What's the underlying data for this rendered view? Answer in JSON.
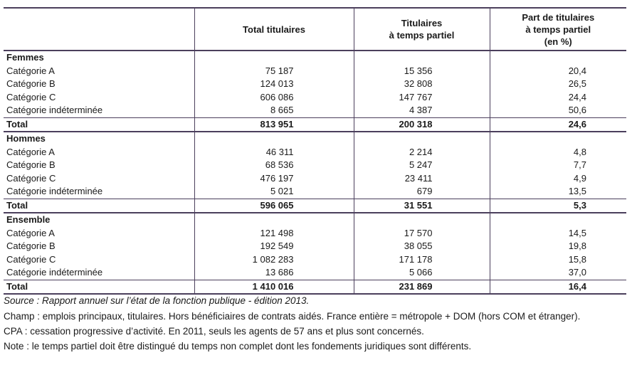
{
  "table": {
    "columns": [
      [
        "Total titulaires"
      ],
      [
        "Titulaires",
        "à temps partiel"
      ],
      [
        "Part de titulaires",
        "à temps partiel",
        "(en %)"
      ]
    ],
    "groups": [
      {
        "label": "Femmes",
        "rows": [
          [
            "Catégorie A",
            "75 187",
            "15 356",
            "20,4"
          ],
          [
            "Catégorie B",
            "124 013",
            "32 808",
            "26,5"
          ],
          [
            "Catégorie C",
            "606 086",
            "147 767",
            "24,4"
          ],
          [
            "Catégorie indéterminée",
            "8 665",
            "4 387",
            "50,6"
          ]
        ],
        "total": [
          "Total",
          "813 951",
          "200 318",
          "24,6"
        ]
      },
      {
        "label": "Hommes",
        "rows": [
          [
            "Catégorie A",
            "46 311",
            "2 214",
            "4,8"
          ],
          [
            "Catégorie B",
            "68 536",
            "5 247",
            "7,7"
          ],
          [
            "Catégorie C",
            "476 197",
            "23 411",
            "4,9"
          ],
          [
            "Catégorie indéterminée",
            "5 021",
            "679",
            "13,5"
          ]
        ],
        "total": [
          "Total",
          "596 065",
          "31 551",
          "5,3"
        ]
      },
      {
        "label": "Ensemble",
        "rows": [
          [
            "Catégorie A",
            "121 498",
            "17 570",
            "14,5"
          ],
          [
            "Catégorie B",
            "192 549",
            "38 055",
            "19,8"
          ],
          [
            "Catégorie C",
            "1 082 283",
            "171 178",
            "15,8"
          ],
          [
            "Catégorie indéterminée",
            "13 686",
            "5 066",
            "37,0"
          ]
        ],
        "total": [
          "Total",
          "1 410 016",
          "231 869",
          "16,4"
        ]
      }
    ]
  },
  "notes": {
    "source": "Source : Rapport annuel sur l’état de la fonction publique - édition 2013.",
    "champ": "Champ : emplois principaux, titulaires. Hors bénéficiaires de contrats aidés. France entière = métropole + DOM (hors COM et étranger).",
    "cpa": "CPA : cessation progressive d’activité. En 2011, seuls les agents de 57 ans et plus sont concernés.",
    "note": "Note : le temps partiel doit être distingué du temps non complet dont les fondements juridiques sont différents."
  }
}
